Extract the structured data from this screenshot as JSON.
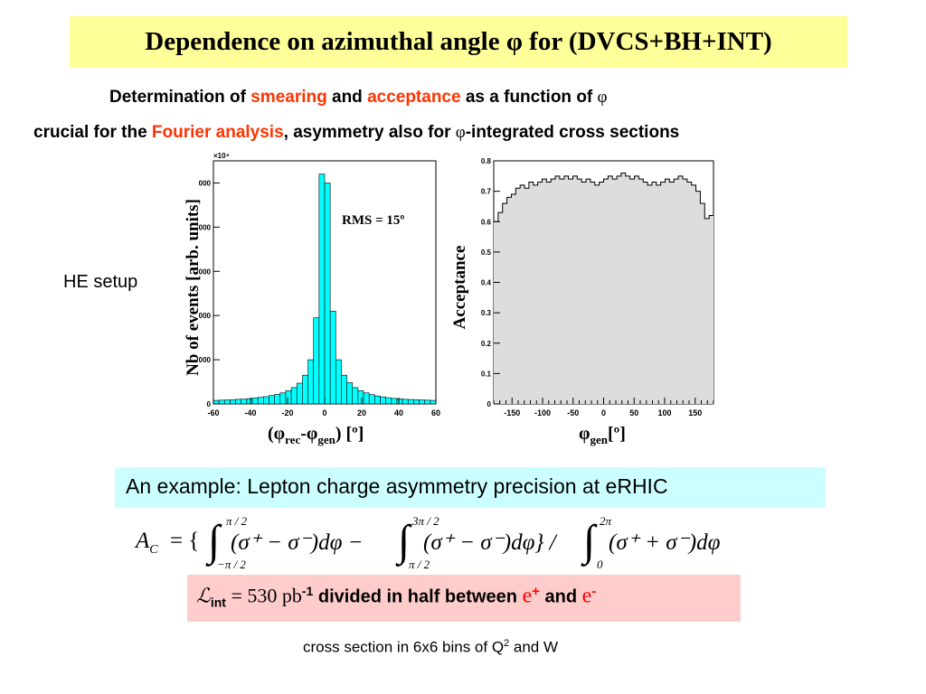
{
  "title": "Dependence on azimuthal angle φ for (DVCS+BH+INT)",
  "line1": {
    "pre": "Determination of ",
    "smearing": "smearing",
    "mid": " and ",
    "acceptance": "acceptance",
    "post": " as a function of ",
    "phi": "φ"
  },
  "line2": {
    "pre": "crucial  for the ",
    "fourier": "Fourier analysis",
    "post": ", asymmetry also for ",
    "phi": "φ",
    "end": "-integrated cross sections"
  },
  "he_setup": "HE setup",
  "chart_data": [
    {
      "type": "bar",
      "title": "",
      "xlabel": "(φrec-φgen) [º]",
      "ylabel": "Nb of events [arb. units]",
      "y_exponent": "×10⁴",
      "annotation": "RMS = 15º",
      "xlim": [
        -60,
        60
      ],
      "ylim": [
        0,
        5500
      ],
      "x_ticks": [
        -60,
        -40,
        -20,
        0,
        20,
        40,
        60
      ],
      "y_ticks": [
        0,
        1000,
        2000,
        3000,
        4000,
        5000
      ],
      "y_tick_labels": [
        "0",
        "000",
        "000",
        "000",
        "000",
        "000"
      ],
      "bin_width": 3,
      "x": [
        -60,
        -57,
        -54,
        -51,
        -48,
        -45,
        -42,
        -39,
        -36,
        -33,
        -30,
        -27,
        -24,
        -21,
        -18,
        -15,
        -12,
        -9,
        -6,
        -3,
        0,
        3,
        6,
        9,
        12,
        15,
        18,
        21,
        24,
        27,
        30,
        33,
        36,
        39,
        42,
        45,
        48,
        51,
        54,
        57
      ],
      "values": [
        80,
        85,
        90,
        95,
        105,
        110,
        120,
        135,
        150,
        165,
        190,
        215,
        250,
        300,
        370,
        470,
        650,
        1000,
        1950,
        5200,
        5000,
        2100,
        1000,
        650,
        480,
        370,
        300,
        250,
        210,
        180,
        160,
        140,
        125,
        115,
        105,
        100,
        95,
        90,
        85,
        80
      ],
      "color": "#00ffff"
    },
    {
      "type": "bar",
      "title": "",
      "xlabel": "φgen[º]",
      "ylabel": "Acceptance",
      "xlim": [
        -180,
        180
      ],
      "ylim": [
        0,
        0.8
      ],
      "x_ticks": [
        -150,
        -100,
        -50,
        0,
        50,
        100,
        150
      ],
      "y_ticks": [
        0,
        0.1,
        0.2,
        0.3,
        0.4,
        0.5,
        0.6,
        0.7,
        0.8
      ],
      "bin_width": 7.2,
      "values": [
        0.6,
        0.63,
        0.66,
        0.68,
        0.69,
        0.71,
        0.72,
        0.71,
        0.73,
        0.72,
        0.73,
        0.74,
        0.73,
        0.74,
        0.75,
        0.74,
        0.75,
        0.74,
        0.75,
        0.74,
        0.73,
        0.74,
        0.73,
        0.72,
        0.73,
        0.74,
        0.75,
        0.74,
        0.75,
        0.76,
        0.75,
        0.74,
        0.75,
        0.74,
        0.73,
        0.72,
        0.73,
        0.72,
        0.73,
        0.74,
        0.73,
        0.74,
        0.75,
        0.74,
        0.73,
        0.72,
        0.7,
        0.66,
        0.61,
        0.62
      ],
      "color": "#dddddd"
    }
  ],
  "example": "An example: Lepton charge asymmetry precision at eRHIC",
  "formula": {
    "lhs": "A",
    "lhs_sub": "C",
    "eq": " = {",
    "int1": "∫",
    "int1_upper": "π / 2",
    "int1_lower": "−π / 2",
    "body1": "(σ⁺ − σ⁻)dφ −",
    "int2": "∫",
    "int2_upper": "3π / 2",
    "int2_lower": "π / 2",
    "body2": "(σ⁺ − σ⁻)dφ} /",
    "int3": "∫",
    "int3_upper": "2π",
    "int3_lower": "0",
    "body3": "(σ⁺ + σ⁻)dφ"
  },
  "lumi": {
    "L": "ℒ",
    "sub": "int",
    "eq": "  =  530 pb",
    "exp": "-1",
    "text": " divided in half between ",
    "ep": "e",
    "ep_sup": "+",
    "and": " and ",
    "em": "e",
    "em_sup": "-"
  },
  "footer": {
    "pre": "cross section in 6x6 bins of Q",
    "sup": "2",
    "post": " and W"
  }
}
